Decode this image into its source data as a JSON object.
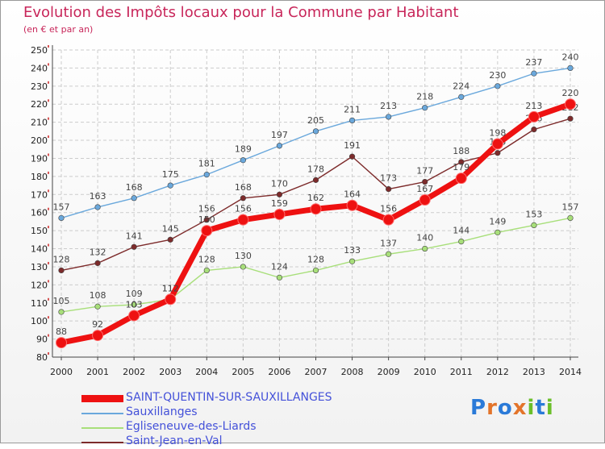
{
  "header": {
    "title": "Evolution des Impôts locaux pour la Commune par Habitant",
    "subtitle": "(en € et par an)"
  },
  "logo": {
    "text": "Proxiti"
  },
  "chart_data": {
    "type": "line",
    "title": "Evolution des Impôts locaux pour la Commune par Habitant",
    "subtitle": "(en € et par an)",
    "xlabel": "",
    "ylabel": "",
    "ylim": [
      80,
      250
    ],
    "ytick_step": 10,
    "grid": true,
    "legend_position": "bottom-left",
    "x": [
      "2000",
      "2001",
      "2002",
      "2003",
      "2004",
      "2005",
      "2006",
      "2007",
      "2008",
      "2009",
      "2010",
      "2011",
      "2012",
      "2013",
      "2014"
    ],
    "series": [
      {
        "name": "SAINT-QUENTIN-SUR-SAUXILLANGES",
        "color": "#ee1111",
        "bold": true,
        "values": [
          88,
          92,
          103,
          112,
          150,
          156,
          159,
          162,
          164,
          156,
          167,
          179,
          198,
          213,
          220
        ]
      },
      {
        "name": "Sauxillanges",
        "color": "#6aa8dc",
        "bold": false,
        "values": [
          157,
          163,
          168,
          175,
          181,
          189,
          197,
          205,
          211,
          213,
          218,
          224,
          230,
          237,
          240
        ]
      },
      {
        "name": "Egliseneuve-des-Liards",
        "color": "#a8df7a",
        "bold": false,
        "values": [
          105,
          108,
          109,
          112,
          128,
          130,
          124,
          128,
          133,
          137,
          140,
          144,
          149,
          153,
          157
        ]
      },
      {
        "name": "Saint-Jean-en-Val",
        "color": "#7d2b2b",
        "bold": false,
        "values": [
          128,
          132,
          141,
          145,
          156,
          168,
          170,
          178,
          191,
          173,
          177,
          188,
          193,
          206,
          212
        ]
      }
    ]
  }
}
